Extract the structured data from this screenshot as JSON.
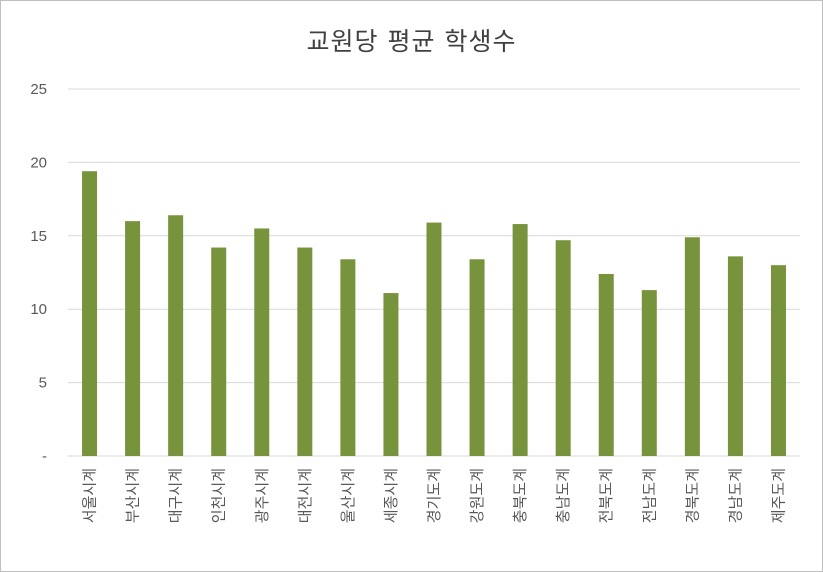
{
  "chart_data": {
    "type": "bar",
    "title": "교원당  평균 학생수",
    "xlabel": "",
    "ylabel": "",
    "ylim": [
      0,
      25
    ],
    "yticks": [
      "-",
      "5",
      "10",
      "15",
      "20",
      "25"
    ],
    "grid": true,
    "legend": "none",
    "bar_color": "#77933c",
    "categories": [
      "서울시계",
      "부산시계",
      "대구시계",
      "인천시계",
      "광주시계",
      "대전시계",
      "울산시계",
      "세종시계",
      "경기도계",
      "강원도계",
      "충북도계",
      "충남도계",
      "전북도계",
      "전남도계",
      "경북도계",
      "경남도계",
      "제주도계"
    ],
    "values": [
      19.4,
      16.0,
      16.4,
      14.2,
      15.5,
      14.2,
      13.4,
      11.1,
      15.9,
      13.4,
      15.8,
      14.7,
      12.4,
      11.3,
      14.9,
      13.6,
      13.0
    ]
  }
}
